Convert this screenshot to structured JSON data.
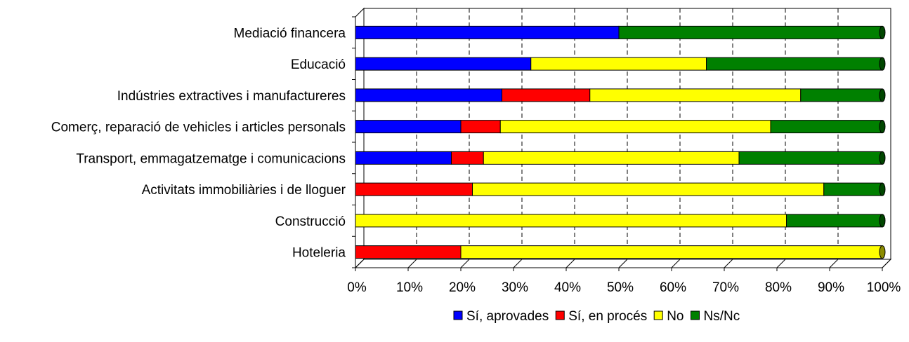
{
  "chart_data": {
    "type": "bar",
    "orientation": "horizontal",
    "stacked": "percent",
    "categories": [
      "Mediació financera",
      "Educació",
      "Indústries extractives i manufactureres",
      "Comerç, reparació de vehicles i articles personals",
      "Transport, emmagatzematge i comunicacions",
      "Activitats immobiliàries i de lloguer",
      "Construcció",
      "Hoteleria"
    ],
    "series": [
      {
        "name": "Sí, aprovades",
        "color": "#0000ff",
        "values": [
          50,
          33.3,
          27.8,
          20,
          18.2,
          0,
          0,
          0
        ]
      },
      {
        "name": "Sí, en procés",
        "color": "#ff0000",
        "values": [
          0,
          0,
          16.7,
          7.5,
          6.1,
          22.2,
          0,
          20
        ]
      },
      {
        "name": "No",
        "color": "#ffff00",
        "values": [
          0,
          33.3,
          40,
          51.3,
          48.5,
          66.7,
          81.8,
          80
        ]
      },
      {
        "name": "Ns/Nc",
        "color": "#008000",
        "values": [
          50,
          33.4,
          15.5,
          21.2,
          27.2,
          11.1,
          18.2,
          0
        ]
      }
    ],
    "x_ticks": [
      "0%",
      "10%",
      "20%",
      "30%",
      "40%",
      "50%",
      "60%",
      "70%",
      "80%",
      "90%",
      "100%"
    ],
    "xlim": [
      0,
      100
    ],
    "grid": "vertical dashed",
    "legend_position": "bottom",
    "title": "",
    "xlabel": "",
    "ylabel": ""
  }
}
